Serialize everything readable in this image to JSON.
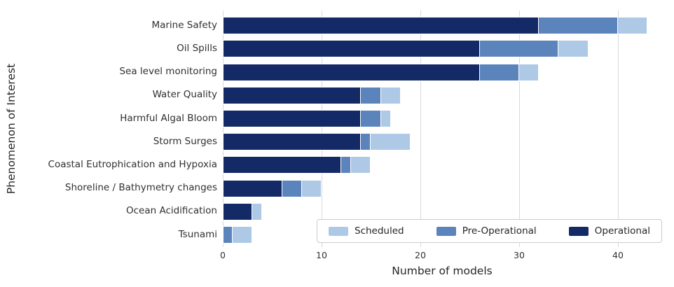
{
  "chart_data": {
    "type": "bar",
    "orientation": "horizontal",
    "stacked": true,
    "title": "",
    "xlabel": "Number of models",
    "ylabel": "Phenomenon of Interest",
    "xlim": [
      0,
      44.5
    ],
    "xticks": [
      0,
      10,
      20,
      30,
      40
    ],
    "grid": true,
    "gridline_color": "#d9d9d9",
    "background_color": "#ffffff",
    "categories": [
      "Marine Safety",
      "Oil Spills",
      "Sea level monitoring",
      "Water Quality",
      "Harmful Algal Bloom",
      "Storm Surges",
      "Coastal Eutrophication and Hypoxia",
      "Shoreline / Bathymetry changes",
      "Ocean Acidification",
      "Tsunami"
    ],
    "series": [
      {
        "name": "Operational",
        "color": "#142a66",
        "values": [
          32,
          26,
          26,
          14,
          14,
          14,
          12,
          6,
          3,
          0
        ]
      },
      {
        "name": "Pre-Operational",
        "color": "#5b84bd",
        "values": [
          8,
          8,
          4,
          2,
          2,
          1,
          1,
          2,
          0,
          1
        ]
      },
      {
        "name": "Scheduled",
        "color": "#adc9e6",
        "values": [
          3,
          3,
          2,
          2,
          1,
          4,
          2,
          2,
          1,
          2
        ]
      }
    ],
    "totals": [
      43,
      37,
      32,
      18,
      17,
      19,
      15,
      10,
      4,
      3
    ],
    "legend": {
      "position": "lower right",
      "entries": [
        "Scheduled",
        "Pre-Operational",
        "Operational"
      ]
    }
  }
}
